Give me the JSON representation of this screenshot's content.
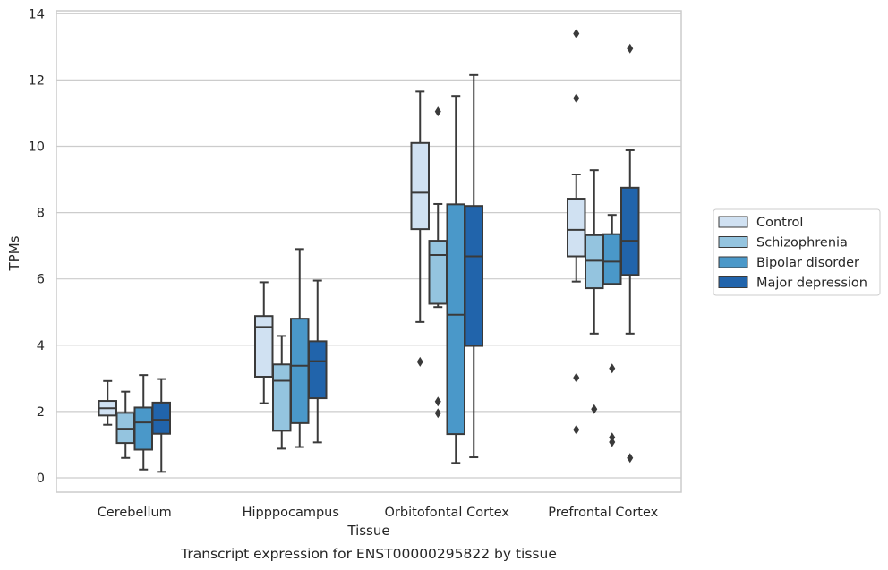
{
  "chart_data": {
    "type": "box",
    "xlabel": "Tissue",
    "ylabel": "TPMs",
    "caption": "Transcript expression for ENST00000295822 by tissue",
    "ylim": [
      -0.45,
      14.1
    ],
    "yticks": [
      0,
      2,
      4,
      6,
      8,
      10,
      12,
      14
    ],
    "grid": true,
    "legend_position": "right",
    "categories": [
      "Cerebellum",
      "Hipppocampus",
      "Orbitofontal Cortex",
      "Prefrontal Cortex"
    ],
    "series": [
      {
        "name": "Control",
        "color": "#d0e1f2",
        "boxes": [
          {
            "whislo": 1.6,
            "q1": 1.88,
            "med": 2.1,
            "q3": 2.32,
            "whishi": 2.92,
            "fliers": []
          },
          {
            "whislo": 2.25,
            "q1": 3.05,
            "med": 4.55,
            "q3": 4.88,
            "whishi": 5.9,
            "fliers": []
          },
          {
            "whislo": 4.7,
            "q1": 7.5,
            "med": 8.6,
            "q3": 10.1,
            "whishi": 11.65,
            "fliers": [
              3.5
            ]
          },
          {
            "whislo": 5.92,
            "q1": 6.68,
            "med": 7.48,
            "q3": 8.42,
            "whishi": 9.15,
            "fliers": [
              13.4,
              11.45,
              3.02,
              1.45
            ]
          }
        ]
      },
      {
        "name": "Schizophrenia",
        "color": "#94c4df",
        "boxes": [
          {
            "whislo": 0.6,
            "q1": 1.05,
            "med": 1.48,
            "q3": 1.96,
            "whishi": 2.6,
            "fliers": []
          },
          {
            "whislo": 0.88,
            "q1": 1.42,
            "med": 2.93,
            "q3": 3.42,
            "whishi": 4.28,
            "fliers": []
          },
          {
            "whislo": 5.15,
            "q1": 5.25,
            "med": 6.72,
            "q3": 7.15,
            "whishi": 8.26,
            "fliers": [
              11.05,
              2.3,
              1.95
            ]
          },
          {
            "whislo": 4.35,
            "q1": 5.72,
            "med": 6.55,
            "q3": 7.32,
            "whishi": 9.28,
            "fliers": [
              2.07
            ]
          }
        ]
      },
      {
        "name": "Bipolar disorder",
        "color": "#4a98c9",
        "boxes": [
          {
            "whislo": 0.25,
            "q1": 0.85,
            "med": 1.67,
            "q3": 2.12,
            "whishi": 3.1,
            "fliers": []
          },
          {
            "whislo": 0.93,
            "q1": 1.65,
            "med": 3.38,
            "q3": 4.8,
            "whishi": 6.9,
            "fliers": []
          },
          {
            "whislo": 0.45,
            "q1": 1.32,
            "med": 4.92,
            "q3": 8.25,
            "whishi": 11.52,
            "fliers": []
          },
          {
            "whislo": 5.83,
            "q1": 5.85,
            "med": 6.52,
            "q3": 7.35,
            "whishi": 7.93,
            "fliers": [
              3.3,
              1.22,
              1.08
            ]
          }
        ]
      },
      {
        "name": "Major depression",
        "color": "#2164ab",
        "boxes": [
          {
            "whislo": 0.18,
            "q1": 1.33,
            "med": 1.75,
            "q3": 2.27,
            "whishi": 2.98,
            "fliers": []
          },
          {
            "whislo": 1.07,
            "q1": 2.4,
            "med": 3.52,
            "q3": 4.12,
            "whishi": 5.95,
            "fliers": []
          },
          {
            "whislo": 0.62,
            "q1": 3.98,
            "med": 6.68,
            "q3": 8.2,
            "whishi": 12.15,
            "fliers": []
          },
          {
            "whislo": 4.35,
            "q1": 6.12,
            "med": 7.15,
            "q3": 8.75,
            "whishi": 9.88,
            "fliers": [
              12.95,
              0.6
            ]
          }
        ]
      }
    ]
  }
}
